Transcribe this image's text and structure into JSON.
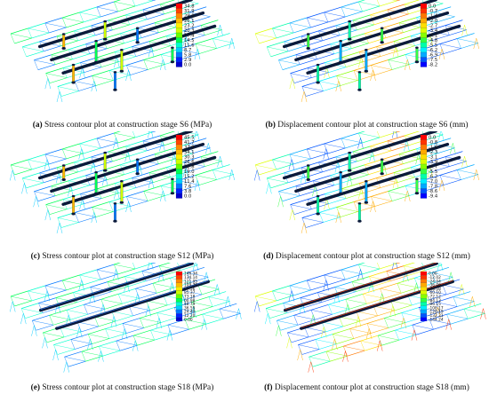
{
  "panels": [
    {
      "id": "a",
      "caption_letter": "(a)",
      "caption_text": " Stress contour plot at construction stage S6 (MPa)",
      "colorbar": "stress",
      "ticks": [
        "34.8",
        "31.9",
        "29.0",
        "26.1",
        "23.2",
        "20.3",
        "17.4",
        "14.5",
        "11.6",
        "8.7",
        "5.8",
        "2.9",
        "0.0"
      ]
    },
    {
      "id": "b",
      "caption_letter": "(b)",
      "caption_text": " Displacement contour plot at construction stage S6 (mm)",
      "colorbar": "displacement",
      "ticks": [
        "0.0",
        "-0.7",
        "-1.4",
        "-2.0",
        "-2.7",
        "-3.4",
        "-4.1",
        "-4.8",
        "-5.5",
        "-6.2",
        "-6.9",
        "-7.5",
        "-8.2"
      ]
    },
    {
      "id": "c",
      "caption_letter": "(c)",
      "caption_text": " Stress contour plot at construction stage S12 (MPa)",
      "colorbar": "stress",
      "ticks": [
        "45.5",
        "41.7",
        "37.9",
        "34.1",
        "30.3",
        "26.6",
        "22.8",
        "19.0",
        "15.2",
        "11.4",
        "7.6",
        "3.8",
        "0.0"
      ]
    },
    {
      "id": "d",
      "caption_letter": "(d)",
      "caption_text": " Displacement contour plot at construction stage S12 (mm)",
      "colorbar": "displacement",
      "ticks": [
        "0.0",
        "-0.8",
        "-1.6",
        "-2.3",
        "-3.1",
        "-3.9",
        "-4.7",
        "-5.5",
        "-6.2",
        "-7.0",
        "-7.8",
        "-8.6",
        "-9.4"
      ]
    },
    {
      "id": "e",
      "caption_letter": "(e)",
      "caption_text": " Stress contour plot at construction stage S18 (MPa)",
      "colorbar": "stress",
      "ticks": [
        "146.34",
        "134.14",
        "121.95",
        "109.76",
        "97.56",
        "85.37",
        "73.18",
        "60.98",
        "48.79",
        "36.59",
        "24.40",
        "12.20",
        "0.00"
      ]
    },
    {
      "id": "f",
      "caption_letter": "(f)",
      "caption_text": " Displacement contour plot at construction stage S18 (mm)",
      "colorbar": "displacement",
      "ticks": [
        "0.00",
        "-12.02",
        "-24.04",
        "-36.06",
        "-48.08",
        "-60.10",
        "-72.12",
        "-84.13",
        "-96.15",
        "-108.17",
        "-120.19",
        "-132.21",
        "-144.24"
      ]
    }
  ],
  "colors": {
    "stress_scale": [
      "#ff0000",
      "#ff4400",
      "#ff8800",
      "#ffbb00",
      "#ffee00",
      "#ccff00",
      "#66ff00",
      "#00ff55",
      "#00ffcc",
      "#00ccff",
      "#0077ff",
      "#0022ff",
      "#0000cc"
    ],
    "displacement_scale": [
      "#ff0000",
      "#ff3300",
      "#ff7700",
      "#ffaa00",
      "#ffdd00",
      "#ddff00",
      "#88ff00",
      "#33ff44",
      "#00ffaa",
      "#00eeff",
      "#00aaff",
      "#0055ff",
      "#0000ff"
    ],
    "beam": "#0b1a3a",
    "frame_lines": "#4a78c8"
  }
}
